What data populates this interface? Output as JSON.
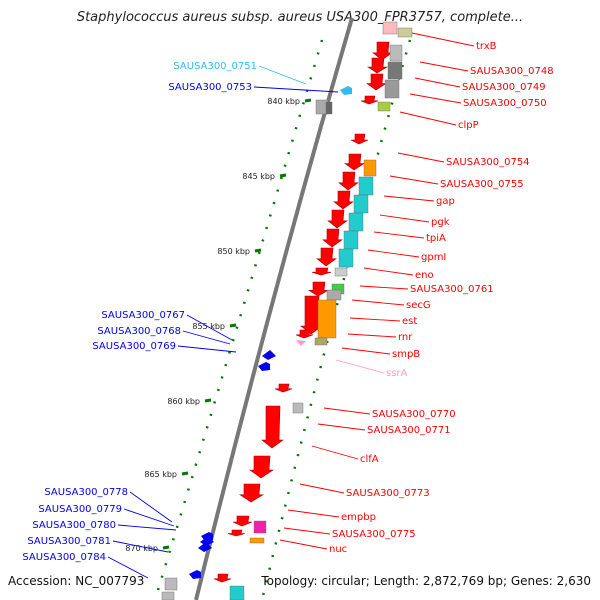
{
  "title": "Staphylococcus aureus subsp. aureus USA300_FPR3757, complete...",
  "footer": {
    "accession": "Accession: NC_007793",
    "stats": "Topology: circular; Length: 2,872,769 bp; Genes: 2,630"
  },
  "colors": {
    "red": "#ff0000",
    "blue": "#0000ee",
    "cyan_label": "#33bbee",
    "pink_label": "#ff99cc",
    "teal_box": "#22cccc",
    "orange_box": "#ff9900",
    "gray_box": "#aaaaaa",
    "green_tick": "#007700",
    "backbone": "#777777"
  },
  "scale_ticks": [
    "840 kbp",
    "845 kbp",
    "850 kbp",
    "855 kbp",
    "860 kbp",
    "865 kbp",
    "870 kbp"
  ],
  "right_labels": [
    {
      "text": "trxB",
      "color": "red"
    },
    {
      "text": "SAUSA300_0748",
      "color": "red"
    },
    {
      "text": "SAUSA300_0749",
      "color": "red"
    },
    {
      "text": "SAUSA300_0750",
      "color": "red"
    },
    {
      "text": "clpP",
      "color": "red"
    },
    {
      "text": "SAUSA300_0754",
      "color": "red"
    },
    {
      "text": "SAUSA300_0755",
      "color": "red"
    },
    {
      "text": "gap",
      "color": "red"
    },
    {
      "text": "pgk",
      "color": "red"
    },
    {
      "text": "tpiA",
      "color": "red"
    },
    {
      "text": "gpmI",
      "color": "red"
    },
    {
      "text": "eno",
      "color": "red"
    },
    {
      "text": "SAUSA300_0761",
      "color": "red"
    },
    {
      "text": "secG",
      "color": "red"
    },
    {
      "text": "est",
      "color": "red"
    },
    {
      "text": "rnr",
      "color": "red"
    },
    {
      "text": "smpB",
      "color": "red"
    },
    {
      "text": "ssrA",
      "color": "pink_label"
    },
    {
      "text": "SAUSA300_0770",
      "color": "red"
    },
    {
      "text": "SAUSA300_0771",
      "color": "red"
    },
    {
      "text": "clfA",
      "color": "red"
    },
    {
      "text": "SAUSA300_0773",
      "color": "red"
    },
    {
      "text": "empbp",
      "color": "red"
    },
    {
      "text": "SAUSA300_0775",
      "color": "red"
    },
    {
      "text": "nuc",
      "color": "red"
    }
  ],
  "left_labels": [
    {
      "text": "SAUSA300_0751",
      "color": "cyan_label"
    },
    {
      "text": "SAUSA300_0753",
      "color": "blue"
    },
    {
      "text": "SAUSA300_0767",
      "color": "blue"
    },
    {
      "text": "SAUSA300_0768",
      "color": "blue"
    },
    {
      "text": "SAUSA300_0769",
      "color": "blue"
    },
    {
      "text": "SAUSA300_0778",
      "color": "blue"
    },
    {
      "text": "SAUSA300_0779",
      "color": "blue"
    },
    {
      "text": "SAUSA300_0780",
      "color": "blue"
    },
    {
      "text": "SAUSA300_0781",
      "color": "blue"
    },
    {
      "text": "SAUSA300_0784",
      "color": "blue"
    }
  ]
}
